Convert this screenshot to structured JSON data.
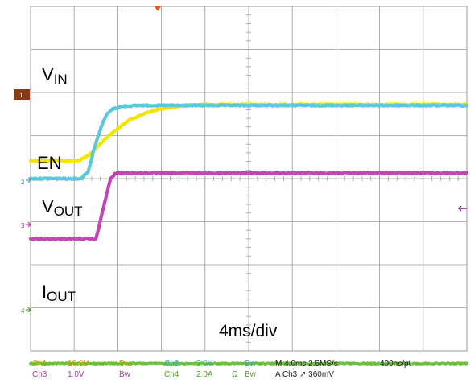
{
  "chart_data": {
    "type": "line",
    "title": "",
    "timebase_label": "4ms/div",
    "x_unit": "ms",
    "x_per_div": 4,
    "xlim": [
      0,
      40
    ],
    "divisions": {
      "x": 10,
      "y": 8
    },
    "grid": true,
    "series": [
      {
        "name": "VIN",
        "channel": "1",
        "color": "#f2e600",
        "baseline_div": 0.42,
        "high_div": 1.72,
        "x": [
          0,
          4.5,
          5.5,
          7,
          9,
          11,
          13,
          14.5,
          16,
          40
        ],
        "level": [
          0,
          0,
          0.12,
          0.42,
          0.72,
          0.88,
          0.96,
          0.99,
          1,
          1
        ]
      },
      {
        "name": "EN",
        "channel": "2",
        "color": "#5bc8dc",
        "baseline_div": 0,
        "high_div": 1.7,
        "x": [
          0,
          4.6,
          5.3,
          5.8,
          6.5,
          7.0,
          7.5,
          8.5,
          10,
          40
        ],
        "level": [
          0,
          0,
          0.1,
          0.4,
          0.72,
          0.88,
          0.95,
          0.99,
          1,
          1
        ]
      },
      {
        "name": "VOUT",
        "channel": "3",
        "color": "#c247b4",
        "baseline_div": -1.4,
        "high_div": 0.13,
        "x": [
          0,
          6.0,
          7.3,
          7.8,
          40
        ],
        "level": [
          0,
          0,
          0.9,
          1,
          1
        ]
      },
      {
        "name": "IOUT",
        "channel": "4",
        "color": "#6ac23c",
        "baseline_div": -4.3,
        "high_div": -4.3,
        "x": [
          0,
          40
        ],
        "level": [
          0,
          0
        ]
      }
    ],
    "labels": [
      {
        "main": "V",
        "sub": "IN",
        "series": "VIN"
      },
      {
        "main": "EN",
        "sub": "",
        "series": "EN"
      },
      {
        "main": "V",
        "sub": "OUT",
        "series": "VOUT"
      },
      {
        "main": "I",
        "sub": "OUT",
        "series": "IOUT"
      }
    ]
  },
  "status": {
    "row1": [
      "Ch1",
      "10.0V",
      "Bw",
      "Ch2",
      "2.0V",
      "Bw",
      "M 4.0ms 2.5MS/s",
      "400ns/pt"
    ],
    "row2": [
      "Ch3",
      "1.0V",
      "Bw",
      "Ch4",
      "2.0A",
      "Ω",
      "Bw",
      "A  Ch3  ↗  360mV"
    ]
  },
  "colors": {
    "grid": "#9a9a9a",
    "ch1_marker_bg": "#8b3a12",
    "trigger_marker": "#e05a1e",
    "ref_marker": "#7a2c82",
    "status_ch1": "#c9a400",
    "status_ch2": "#3aa8c2",
    "status_ch3": "#b23aa6",
    "status_ch4": "#4f9e2a"
  }
}
